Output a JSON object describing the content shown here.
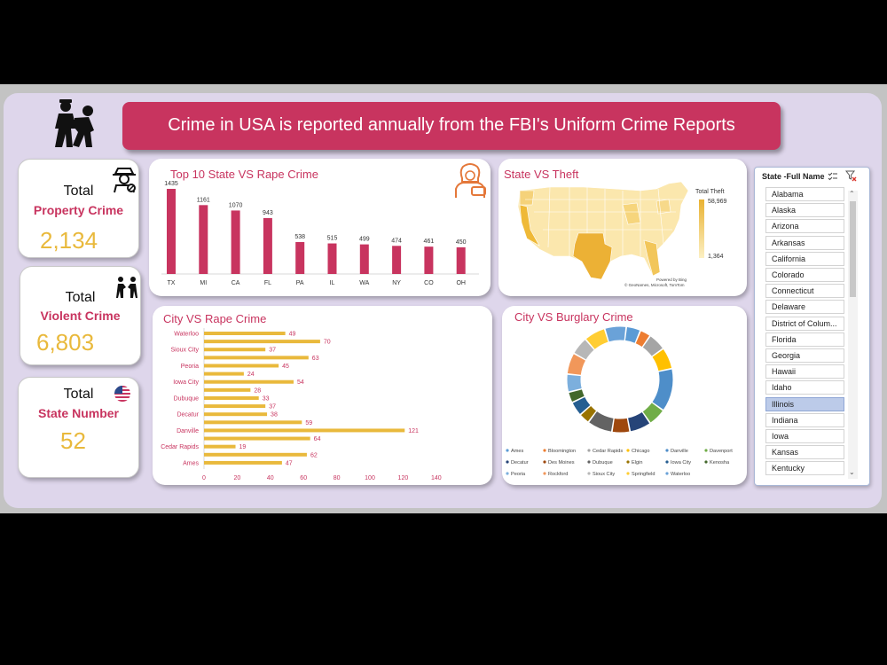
{
  "header": {
    "title": "Crime in USA is reported annually from the FBI's Uniform Crime Reports"
  },
  "kpis": {
    "property": {
      "label_total": "Total",
      "label_name": "Property Crime",
      "value": "2,134",
      "icon": "detective-icon"
    },
    "violent": {
      "label_total": "Total",
      "label_name": "Violent Crime",
      "value": "6,803",
      "icon": "fight-icon"
    },
    "state": {
      "label_total": "Total",
      "label_name": "State Number",
      "value": "52",
      "icon": "us-flag-icon"
    }
  },
  "colors": {
    "accent": "#c8345f",
    "gold": "#e9b93c",
    "panel": "#ded6eb"
  },
  "chart_data": [
    {
      "type": "bar",
      "title": "Top 10 State VS Rape Crime",
      "categories": [
        "TX",
        "MI",
        "CA",
        "FL",
        "PA",
        "IL",
        "WA",
        "NY",
        "CO",
        "OH"
      ],
      "values": [
        1435,
        1161,
        1070,
        943,
        538,
        515,
        499,
        474,
        461,
        450
      ],
      "color": "#c8345f"
    },
    {
      "type": "heatmap",
      "title": "State VS Theft",
      "legend_title": "Total Theft",
      "range_labels": [
        "58,969",
        "1,364"
      ],
      "attribution": "Powered by Bing",
      "copyright": "© GeoNames, Microsoft, TomTom"
    },
    {
      "type": "bar",
      "title": "City VS Rape Crime",
      "orientation": "horizontal",
      "categories": [
        "Waterloo",
        "",
        "Sioux City",
        "",
        "Peoria",
        "",
        "Iowa City",
        "",
        "Dubuque",
        "",
        "Decatur",
        "",
        "Danville",
        "",
        "Cedar Rapids",
        "",
        "Ames"
      ],
      "values": [
        49,
        70,
        37,
        63,
        45,
        24,
        54,
        28,
        33,
        37,
        38,
        59,
        121,
        64,
        19,
        62,
        47
      ],
      "x_ticks": [
        "0",
        "20",
        "40",
        "60",
        "80",
        "100",
        "120",
        "140"
      ],
      "xlim": [
        0,
        140
      ],
      "color": "#e9b93c"
    },
    {
      "type": "pie",
      "title": "City VS Burglary Crime",
      "legend": [
        {
          "name": "Ames",
          "color": "#5b9bd5"
        },
        {
          "name": "Bloomington",
          "color": "#ed7d31"
        },
        {
          "name": "Cedar Rapids",
          "color": "#a5a5a5"
        },
        {
          "name": "Chicago",
          "color": "#ffc000"
        },
        {
          "name": "Danville",
          "color": "#4e8ec9"
        },
        {
          "name": "Davenport",
          "color": "#70ad47"
        },
        {
          "name": "Decatur",
          "color": "#264478"
        },
        {
          "name": "Des Moines",
          "color": "#9e480e"
        },
        {
          "name": "Dubuque",
          "color": "#636363"
        },
        {
          "name": "Elgin",
          "color": "#997300"
        },
        {
          "name": "Iowa City",
          "color": "#255e91"
        },
        {
          "name": "Kenosha",
          "color": "#43682b"
        },
        {
          "name": "Peoria",
          "color": "#7cafdd"
        },
        {
          "name": "Rockford",
          "color": "#f1975a"
        },
        {
          "name": "Sioux City",
          "color": "#b7b7b7"
        },
        {
          "name": "Springfield",
          "color": "#ffcd33"
        },
        {
          "name": "Waterloo",
          "color": "#6aa2d8"
        }
      ],
      "segments": [
        {
          "color": "#5b9bd5",
          "value": 4
        },
        {
          "color": "#ed7d31",
          "value": 3
        },
        {
          "color": "#a5a5a5",
          "value": 5
        },
        {
          "color": "#ffc000",
          "value": 6
        },
        {
          "color": "#4e8ec9",
          "value": 12
        },
        {
          "color": "#70ad47",
          "value": 5
        },
        {
          "color": "#264478",
          "value": 6
        },
        {
          "color": "#9e480e",
          "value": 5
        },
        {
          "color": "#636363",
          "value": 7
        },
        {
          "color": "#997300",
          "value": 3
        },
        {
          "color": "#255e91",
          "value": 4
        },
        {
          "color": "#43682b",
          "value": 3
        },
        {
          "color": "#7cafdd",
          "value": 5
        },
        {
          "color": "#f1975a",
          "value": 6
        },
        {
          "color": "#b7b7b7",
          "value": 5
        },
        {
          "color": "#ffcd33",
          "value": 6
        },
        {
          "color": "#6aa2d8",
          "value": 6
        }
      ]
    }
  ],
  "slicer": {
    "title": "State -Full Name",
    "items": [
      "Alabama",
      "Alaska",
      "Arizona",
      "Arkansas",
      "California",
      "Colorado",
      "Connecticut",
      "Delaware",
      "District of Colum...",
      "Florida",
      "Georgia",
      "Hawaii",
      "Idaho",
      "Illinois",
      "Indiana",
      "Iowa",
      "Kansas",
      "Kentucky"
    ],
    "selected": "Illinois"
  }
}
